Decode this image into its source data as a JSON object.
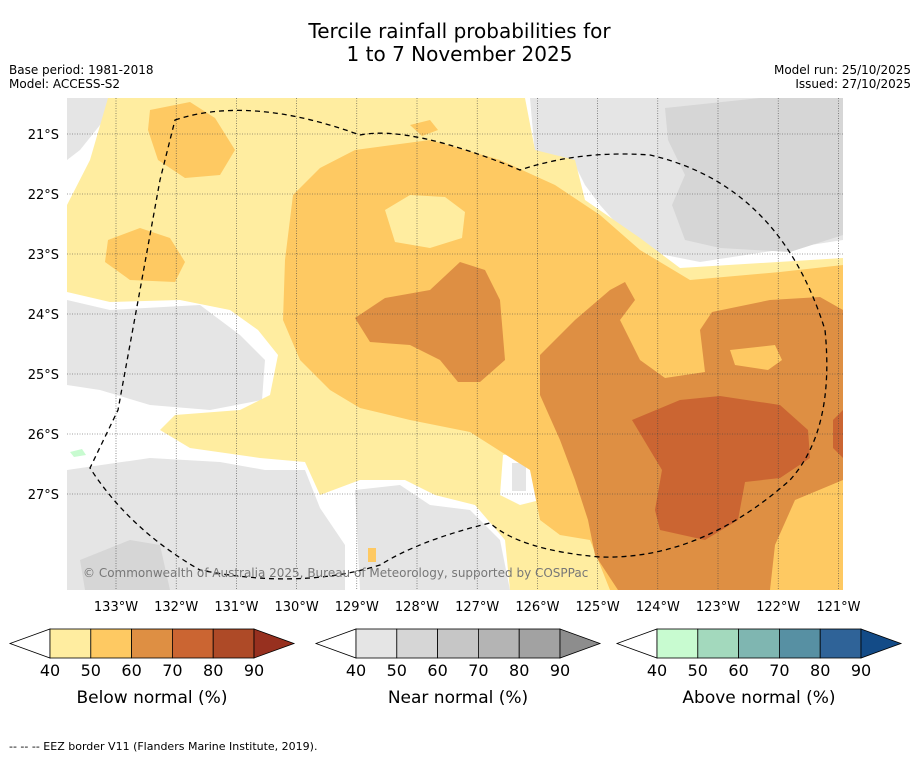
{
  "header": {
    "title_line1": "Tercile rainfall probabilities for",
    "title_line2": "1 to 7 November 2025",
    "base_period": "Base period: 1981-2018",
    "model": "Model: ACCESS-S2",
    "model_run": "Model run: 25/10/2025",
    "issued": "Issued: 27/10/2025"
  },
  "map": {
    "lat_labels": [
      "21°S",
      "22°S",
      "23°S",
      "24°S",
      "25°S",
      "26°S",
      "27°S"
    ],
    "lon_labels": [
      "133°W",
      "132°W",
      "131°W",
      "130°W",
      "129°W",
      "128°W",
      "127°W",
      "126°W",
      "125°W",
      "124°W",
      "123°W",
      "122°W",
      "121°W"
    ],
    "copyright": "© Commonwealth of Australia 2025, Bureau of Meteorology, supported by COSPPac"
  },
  "colorbars": [
    {
      "label": "Below normal (%)",
      "ticks": [
        "40",
        "50",
        "60",
        "70",
        "80",
        "90"
      ],
      "colors": [
        "#ffeda0",
        "#fec962",
        "#de8f43",
        "#cb6532",
        "#ae4a27"
      ],
      "arrow": "#97301f"
    },
    {
      "label": "Near normal (%)",
      "ticks": [
        "40",
        "50",
        "60",
        "70",
        "80",
        "90"
      ],
      "colors": [
        "#e5e5e5",
        "#d6d6d6",
        "#c6c6c6",
        "#b4b4b4",
        "#a2a2a2"
      ],
      "arrow": "#8d8d8d"
    },
    {
      "label": "Above normal (%)",
      "ticks": [
        "40",
        "50",
        "60",
        "70",
        "80",
        "90"
      ],
      "colors": [
        "#c8fbd0",
        "#a3d9bd",
        "#7fb6b1",
        "#5790a3",
        "#2f6398"
      ],
      "arrow": "#134b87"
    }
  ],
  "footnote": "--  --  -- EEZ border V11 (Flanders Marine Institute, 2019)."
}
